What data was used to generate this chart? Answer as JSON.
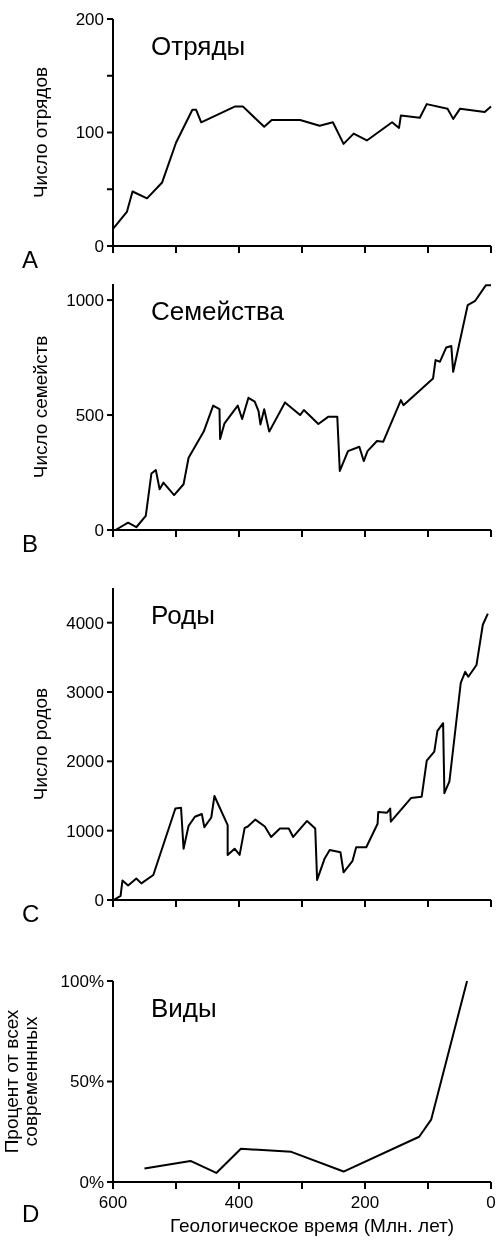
{
  "chart_data": [
    {
      "type": "line",
      "title": "Отряды",
      "ylabel": "Число отрядов",
      "annotations": [
        "A"
      ],
      "tick_labels": "y",
      "xlim": [
        600,
        0
      ],
      "xticks": [
        {
          "value": 600,
          "label": null
        },
        {
          "value": 500,
          "label": null
        },
        {
          "value": 400,
          "label": null
        },
        {
          "value": 300,
          "label": null
        },
        {
          "value": 200,
          "label": null
        },
        {
          "value": 100,
          "label": null
        },
        {
          "value": 0,
          "label": null
        }
      ],
      "ylim": [
        0,
        200
      ],
      "yticks": [
        0,
        {
          "value": 50,
          "label": null
        },
        100,
        {
          "value": 150,
          "label": null
        },
        200
      ],
      "grid": false,
      "marker": "none",
      "line_style": "solid",
      "series": [
        {
          "color": "#000000",
          "x": [
            600,
            578,
            569,
            546,
            522,
            500,
            474,
            468,
            460,
            406,
            394,
            360,
            348,
            303,
            272,
            251,
            234,
            218,
            197,
            157,
            146,
            143,
            113,
            102,
            69,
            60,
            49,
            10,
            0
          ],
          "values": [
            15,
            30,
            48,
            42,
            56,
            91,
            120,
            120,
            109,
            123,
            123,
            105,
            111,
            111,
            106,
            109,
            90,
            99,
            93,
            109,
            104,
            115,
            113,
            125,
            121,
            112,
            121,
            118,
            123
          ]
        }
      ]
    },
    {
      "type": "line",
      "title": "Семейства",
      "ylabel": "Число семейств",
      "annotations": [
        "B"
      ],
      "tick_labels": "y",
      "xlim": [
        600,
        0
      ],
      "xticks": [
        {
          "value": 600,
          "label": null
        },
        {
          "value": 500,
          "label": null
        },
        {
          "value": 400,
          "label": null
        },
        {
          "value": 300,
          "label": null
        },
        {
          "value": 200,
          "label": null
        },
        {
          "value": 100,
          "label": null
        },
        {
          "value": 0,
          "label": null
        }
      ],
      "ylim": [
        0,
        1070
      ],
      "yticks": [
        0,
        500,
        1000
      ],
      "grid": false,
      "marker": "none",
      "line_style": "solid",
      "series": [
        {
          "color": "#000000",
          "x": [
            596,
            576,
            563,
            548,
            539,
            532,
            526,
            520,
            503,
            488,
            480,
            456,
            441,
            431,
            430,
            423,
            402,
            395,
            385,
            375,
            369,
            366,
            360,
            352,
            327,
            303,
            297,
            274,
            258,
            244,
            240,
            227,
            209,
            202,
            196,
            181,
            171,
            143,
            139,
            92,
            88,
            81,
            71,
            63,
            60,
            37,
            25,
            8,
            0
          ],
          "values": [
            0,
            32,
            12,
            61,
            246,
            261,
            177,
            206,
            152,
            199,
            314,
            428,
            541,
            526,
            396,
            464,
            541,
            483,
            575,
            558,
            517,
            459,
            525,
            428,
            555,
            500,
            522,
            461,
            493,
            493,
            257,
            343,
            362,
            300,
            343,
            387,
            384,
            565,
            543,
            659,
            739,
            732,
            794,
            800,
            688,
            978,
            997,
            1065,
            1065
          ]
        }
      ]
    },
    {
      "type": "line",
      "title": "Роды",
      "ylabel": "Число родов",
      "annotations": [
        "C"
      ],
      "tick_labels": "y",
      "xlim": [
        600,
        0
      ],
      "xticks": [
        {
          "value": 600,
          "label": null
        },
        {
          "value": 500,
          "label": null
        },
        {
          "value": 400,
          "label": null
        },
        {
          "value": 300,
          "label": null
        },
        {
          "value": 200,
          "label": null
        },
        {
          "value": 100,
          "label": null
        },
        {
          "value": 0,
          "label": null
        }
      ],
      "ylim": [
        0,
        4500
      ],
      "yticks": [
        0,
        1000,
        2000,
        3000,
        4000
      ],
      "grid": false,
      "marker": "none",
      "line_style": "solid",
      "series": [
        {
          "color": "#000000",
          "x": [
            599,
            588,
            585,
            576,
            563,
            555,
            536,
            501,
            492,
            488,
            480,
            470,
            459,
            455,
            444,
            439,
            418,
            418,
            407,
            399,
            391,
            386,
            374,
            359,
            349,
            335,
            321,
            314,
            292,
            279,
            276,
            264,
            256,
            239,
            234,
            220,
            214,
            198,
            180,
            179,
            165,
            160,
            159,
            127,
            110,
            102,
            90,
            85,
            76,
            74,
            66,
            48,
            41,
            36,
            23,
            13,
            5
          ],
          "values": [
            0,
            60,
            280,
            210,
            310,
            240,
            360,
            1320,
            1330,
            740,
            1070,
            1200,
            1240,
            1050,
            1190,
            1500,
            1080,
            650,
            740,
            650,
            1040,
            1060,
            1160,
            1060,
            910,
            1030,
            1030,
            910,
            1140,
            1030,
            290,
            600,
            720,
            690,
            400,
            560,
            760,
            760,
            1100,
            1270,
            1260,
            1320,
            1130,
            1470,
            1490,
            2010,
            2140,
            2440,
            2550,
            1540,
            1710,
            3130,
            3290,
            3220,
            3390,
            3970,
            4130
          ]
        }
      ]
    },
    {
      "type": "line",
      "title": "Виды",
      "ylabel": "Процент от всех современнных",
      "xlabel": "Геологическое время (Млн. лет)",
      "annotations": [
        "D"
      ],
      "xlim": [
        600,
        0
      ],
      "xticks": [
        600,
        {
          "value": 500,
          "label": null
        },
        400,
        {
          "value": 300,
          "label": null
        },
        200,
        {
          "value": 100,
          "label": null
        },
        0
      ],
      "ylim": [
        0,
        100
      ],
      "yticks": [
        {
          "value": 0,
          "label": "0%"
        },
        {
          "value": 50,
          "label": "50%"
        },
        {
          "value": 100,
          "label": "100%"
        }
      ],
      "grid": false,
      "marker": "none",
      "line_style": "solid",
      "series": [
        {
          "color": "#000000",
          "x": [
            550,
            477,
            436,
            397,
            317,
            234,
            114,
            95,
            38
          ],
          "values": [
            6.7,
            10.5,
            4.5,
            16.5,
            15,
            5.2,
            22.5,
            31,
            100
          ]
        }
      ]
    }
  ]
}
